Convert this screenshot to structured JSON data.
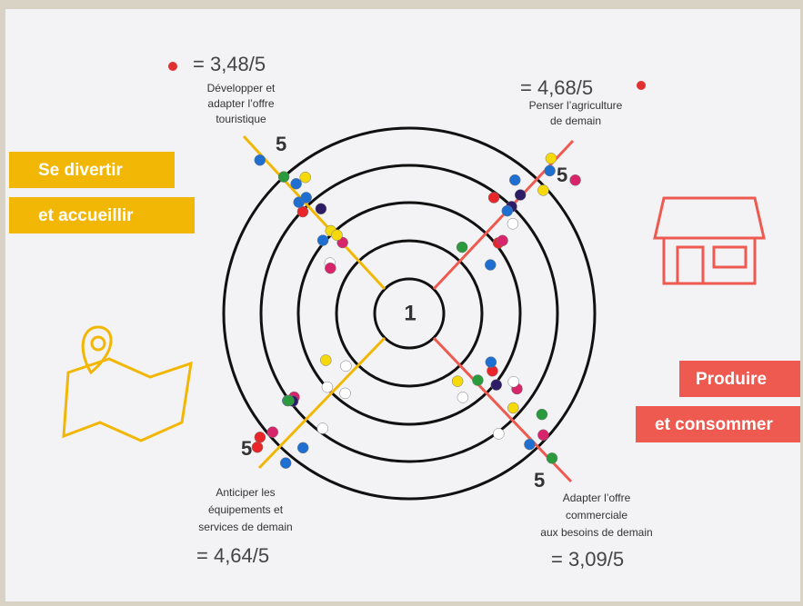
{
  "center_label": "1",
  "banners": {
    "left": [
      "Se divertir",
      "et accueillir"
    ],
    "right": [
      "Produire",
      "et consommer"
    ]
  },
  "axes": [
    {
      "score": "= 3,48/5",
      "label_lines": [
        "Développer et",
        "adapter l’offre",
        "touristique"
      ],
      "end_label": "5"
    },
    {
      "score": "= 4,68/5",
      "label_lines": [
        "Penser l’agriculture",
        "de demain"
      ],
      "end_label": "5"
    },
    {
      "score": "= 4,64/5",
      "label_lines": [
        "Anticiper les",
        "équipements et",
        "services de demain"
      ],
      "end_label": "5"
    },
    {
      "score": "= 3,09/5",
      "label_lines": [
        "Adapter l’offre",
        "commerciale",
        "aux besoins de demain"
      ],
      "end_label": "5"
    }
  ]
}
